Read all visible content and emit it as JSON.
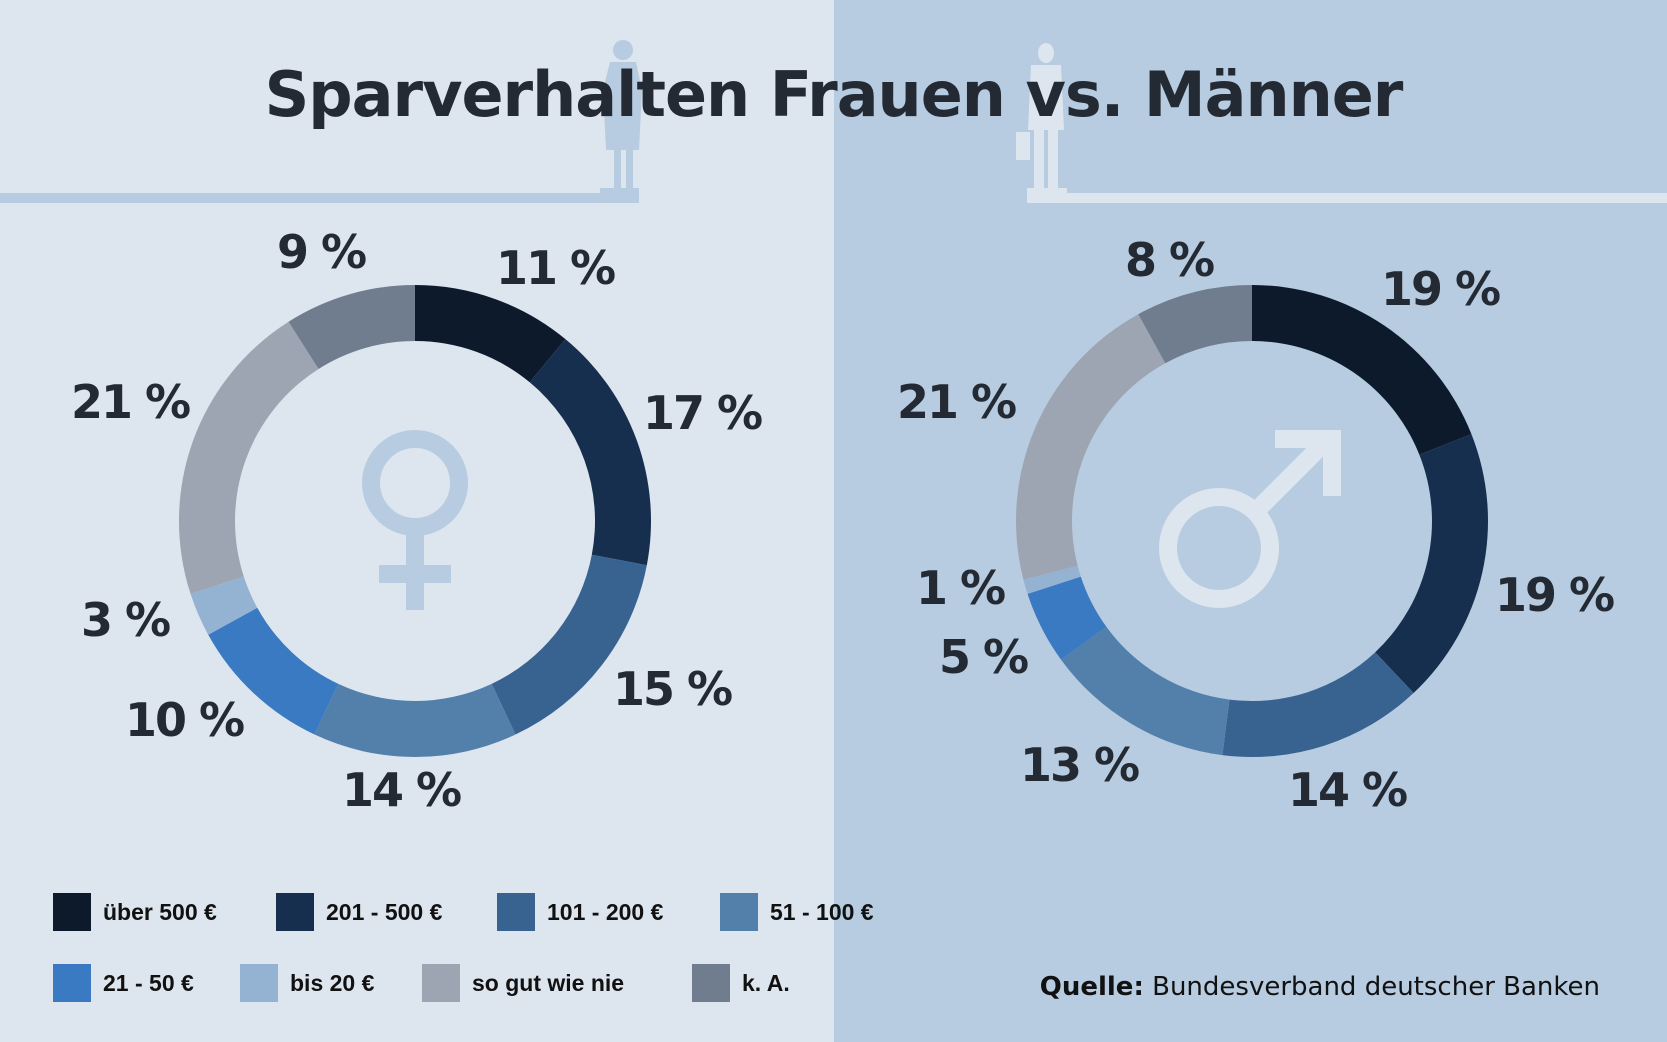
{
  "title": "Sparverhalten Frauen vs. Männer",
  "source": {
    "label": "Quelle:",
    "text": "Bundesverband deutscher Banken"
  },
  "colors": {
    "background_women": "#dde5ef",
    "background_men": "#b7cce0",
    "text": "#232a33"
  },
  "icons": {
    "women": "venus-symbol-icon",
    "men": "mars-symbol-icon",
    "woman_figure": "woman-silhouette-icon",
    "man_figure": "man-silhouette-icon"
  },
  "chart_data": [
    {
      "type": "pie",
      "subtype": "donut",
      "group": "Frauen",
      "categories": [
        "über 500 €",
        "201 - 500 €",
        "101 - 200 €",
        "51 - 100 €",
        "21 - 50 €",
        "bis 20 €",
        "so gut wie nie",
        "k. A."
      ],
      "values": [
        11,
        17,
        15,
        14,
        10,
        3,
        21,
        9
      ],
      "labels": [
        "11 %",
        "17 %",
        "15 %",
        "14 %",
        "10 %",
        "3 %",
        "21 %",
        "9 %"
      ],
      "unit": "%"
    },
    {
      "type": "pie",
      "subtype": "donut",
      "group": "Männer",
      "categories": [
        "über 500 €",
        "201 - 500 €",
        "101 - 200 €",
        "51 - 100 €",
        "21 - 50 €",
        "bis 20 €",
        "so gut wie nie",
        "k. A."
      ],
      "values": [
        19,
        19,
        14,
        13,
        5,
        1,
        21,
        8
      ],
      "labels": [
        "19 %",
        "19 %",
        "14 %",
        "13 %",
        "5 %",
        "1 %",
        "21 %",
        "8 %"
      ],
      "unit": "%"
    }
  ],
  "legend": [
    {
      "label": "über 500 €",
      "color": "#0d1a2b"
    },
    {
      "label": "201 - 500 €",
      "color": "#172f4f"
    },
    {
      "label": "101 - 200 €",
      "color": "#386390"
    },
    {
      "label": "51 - 100 €",
      "color": "#5380ab"
    },
    {
      "label": "21 - 50 €",
      "color": "#3a7ac2"
    },
    {
      "label": "bis 20 €",
      "color": "#94b3d3"
    },
    {
      "label": "so gut wie nie",
      "color": "#9ea5b2"
    },
    {
      "label": "k. A.",
      "color": "#6f7d8e"
    }
  ]
}
